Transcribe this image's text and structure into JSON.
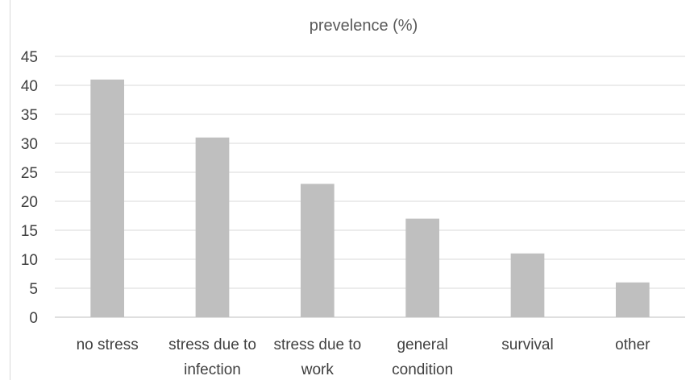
{
  "chart_data": {
    "type": "bar",
    "title": "prevelence (%)",
    "xlabel": "",
    "ylabel": "",
    "categories": [
      [
        "no stress"
      ],
      [
        "stress due to",
        "infection"
      ],
      [
        "stress due to",
        "work"
      ],
      [
        "general",
        "condition"
      ],
      [
        "survival"
      ],
      [
        "other"
      ]
    ],
    "values": [
      41,
      31,
      23,
      17,
      11,
      6
    ],
    "ylim": [
      0,
      45
    ],
    "yticks": [
      0,
      5,
      10,
      15,
      20,
      25,
      30,
      35,
      40,
      45
    ],
    "grid": true,
    "legend": "none",
    "colors": {
      "bar": "#bfbfbf",
      "grid": "#d9d9d9",
      "axis": "#bfbfbf",
      "text": "#404040"
    }
  }
}
